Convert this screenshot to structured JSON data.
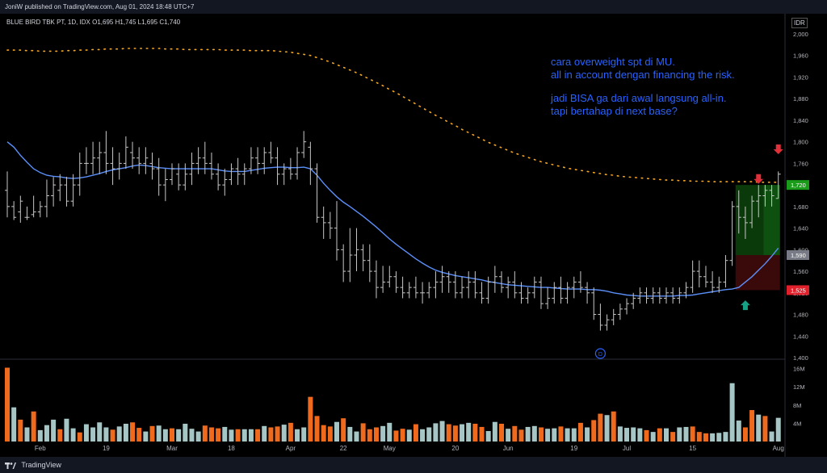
{
  "header": {
    "text": "JoniW published on TradingView.com, Aug 01, 2024 18:48 UTC+7"
  },
  "footer": {
    "brand": "TradingView"
  },
  "legend": {
    "symbol": "BLUE BIRD TBK PT, 1D, IDX",
    "o": "O1,695",
    "h": "H1,745",
    "l": "L1,695",
    "c": "C1,740"
  },
  "currency": "IDR",
  "annotation": {
    "line1": "cara overweight spt di MU.",
    "line2": "all in account dengan financing the risk.",
    "line3": "jadi BISA ga dari awal langsung all-in.",
    "line4": "tapi bertahap di next base?"
  },
  "colors": {
    "background": "#000000",
    "bar": "#c8c8c8",
    "ma_fast": "#5b8ff9",
    "ma_slow": "#f5a623",
    "vol_up": "#a6c6c6",
    "vol_down": "#f06a1e",
    "target_zone": "#0a3a0a",
    "stop_zone": "#3a0a0a",
    "tag_green": "#1a9c1a",
    "tag_red": "#e0202a",
    "tag_gray": "#787b86",
    "arrow_red": "#e0303a",
    "arrow_green": "#16a085",
    "annotation_text": "#2962ff"
  },
  "chart_data": {
    "type": "ohlc",
    "title": "BLUE BIRD TBK PT, 1D, IDX",
    "y_axis": {
      "ticks": [
        "2,000",
        "1,960",
        "1,920",
        "1,880",
        "1,840",
        "1,800",
        "1,760",
        "1,720",
        "1,680",
        "1,640",
        "1,600",
        "1,560",
        "1,520",
        "1,480",
        "1,440",
        "1,400"
      ],
      "min": 1400,
      "max": 2000
    },
    "price_tags": [
      {
        "label": "1,720",
        "value": 1720,
        "color": "green"
      },
      {
        "label": "1,590",
        "value": 1590,
        "color": "gray"
      },
      {
        "label": "1,525",
        "value": 1525,
        "color": "red"
      }
    ],
    "volume_axis": {
      "ticks": [
        "16M",
        "12M",
        "8M",
        "4M"
      ],
      "max": 17
    },
    "x_axis": {
      "labels": [
        {
          "label": "Feb",
          "bar": 5
        },
        {
          "label": "19",
          "bar": 15
        },
        {
          "label": "Mar",
          "bar": 25
        },
        {
          "label": "18",
          "bar": 34
        },
        {
          "label": "Apr",
          "bar": 43
        },
        {
          "label": "22",
          "bar": 51
        },
        {
          "label": "May",
          "bar": 58
        },
        {
          "label": "20",
          "bar": 68
        },
        {
          "label": "Jun",
          "bar": 76
        },
        {
          "label": "19",
          "bar": 86
        },
        {
          "label": "Jul",
          "bar": 94
        },
        {
          "label": "15",
          "bar": 104
        },
        {
          "label": "Aug",
          "bar": 117
        }
      ]
    },
    "bars_count": 118,
    "ohlc": [
      [
        1710,
        1745,
        1660,
        1680
      ],
      [
        1680,
        1690,
        1655,
        1660
      ],
      [
        1670,
        1700,
        1650,
        1690
      ],
      [
        1660,
        1680,
        1655,
        1660
      ],
      [
        1665,
        1700,
        1660,
        1670
      ],
      [
        1670,
        1690,
        1660,
        1680
      ],
      [
        1680,
        1730,
        1660,
        1700
      ],
      [
        1700,
        1735,
        1680,
        1720
      ],
      [
        1710,
        1740,
        1690,
        1720
      ],
      [
        1720,
        1735,
        1680,
        1690
      ],
      [
        1690,
        1740,
        1680,
        1720
      ],
      [
        1720,
        1780,
        1700,
        1760
      ],
      [
        1760,
        1790,
        1740,
        1760
      ],
      [
        1760,
        1800,
        1740,
        1770
      ],
      [
        1770,
        1800,
        1740,
        1780
      ],
      [
        1780,
        1820,
        1740,
        1760
      ],
      [
        1760,
        1790,
        1720,
        1750
      ],
      [
        1750,
        1780,
        1730,
        1760
      ],
      [
        1760,
        1810,
        1750,
        1790
      ],
      [
        1780,
        1800,
        1750,
        1770
      ],
      [
        1770,
        1790,
        1740,
        1760
      ],
      [
        1760,
        1790,
        1740,
        1770
      ],
      [
        1760,
        1780,
        1730,
        1750
      ],
      [
        1750,
        1770,
        1700,
        1720
      ],
      [
        1720,
        1750,
        1690,
        1730
      ],
      [
        1730,
        1760,
        1720,
        1750
      ],
      [
        1740,
        1760,
        1710,
        1720
      ],
      [
        1720,
        1760,
        1710,
        1740
      ],
      [
        1740,
        1780,
        1720,
        1760
      ],
      [
        1760,
        1790,
        1740,
        1770
      ],
      [
        1770,
        1800,
        1740,
        1760
      ],
      [
        1760,
        1780,
        1730,
        1740
      ],
      [
        1740,
        1760,
        1710,
        1720
      ],
      [
        1720,
        1750,
        1700,
        1730
      ],
      [
        1730,
        1760,
        1720,
        1750
      ],
      [
        1750,
        1770,
        1720,
        1740
      ],
      [
        1740,
        1760,
        1720,
        1750
      ],
      [
        1750,
        1790,
        1740,
        1770
      ],
      [
        1770,
        1790,
        1740,
        1760
      ],
      [
        1760,
        1790,
        1740,
        1780
      ],
      [
        1780,
        1800,
        1760,
        1770
      ],
      [
        1770,
        1790,
        1720,
        1740
      ],
      [
        1740,
        1760,
        1720,
        1750
      ],
      [
        1750,
        1770,
        1730,
        1740
      ],
      [
        1740,
        1790,
        1730,
        1780
      ],
      [
        1780,
        1820,
        1770,
        1800
      ],
      [
        1790,
        1800,
        1720,
        1750
      ],
      [
        1750,
        1760,
        1650,
        1660
      ],
      [
        1660,
        1680,
        1620,
        1650
      ],
      [
        1650,
        1670,
        1620,
        1640
      ],
      [
        1640,
        1690,
        1580,
        1600
      ],
      [
        1600,
        1610,
        1540,
        1560
      ],
      [
        1560,
        1640,
        1540,
        1590
      ],
      [
        1590,
        1640,
        1560,
        1600
      ],
      [
        1600,
        1610,
        1560,
        1580
      ],
      [
        1580,
        1610,
        1540,
        1560
      ],
      [
        1560,
        1580,
        1510,
        1530
      ],
      [
        1530,
        1570,
        1520,
        1540
      ],
      [
        1540,
        1570,
        1530,
        1550
      ],
      [
        1550,
        1560,
        1520,
        1530
      ],
      [
        1530,
        1550,
        1510,
        1520
      ],
      [
        1520,
        1540,
        1510,
        1530
      ],
      [
        1530,
        1550,
        1510,
        1520
      ],
      [
        1520,
        1540,
        1500,
        1520
      ],
      [
        1520,
        1540,
        1510,
        1530
      ],
      [
        1530,
        1560,
        1510,
        1540
      ],
      [
        1540,
        1570,
        1520,
        1550
      ],
      [
        1550,
        1560,
        1520,
        1540
      ],
      [
        1540,
        1560,
        1510,
        1520
      ],
      [
        1520,
        1550,
        1510,
        1530
      ],
      [
        1530,
        1560,
        1510,
        1540
      ],
      [
        1540,
        1560,
        1510,
        1520
      ],
      [
        1520,
        1540,
        1500,
        1510
      ],
      [
        1510,
        1550,
        1500,
        1540
      ],
      [
        1540,
        1570,
        1520,
        1550
      ],
      [
        1550,
        1560,
        1520,
        1530
      ],
      [
        1530,
        1550,
        1510,
        1540
      ],
      [
        1540,
        1560,
        1510,
        1520
      ],
      [
        1520,
        1540,
        1500,
        1510
      ],
      [
        1510,
        1530,
        1500,
        1520
      ],
      [
        1520,
        1550,
        1510,
        1540
      ],
      [
        1540,
        1550,
        1490,
        1500
      ],
      [
        1500,
        1530,
        1490,
        1510
      ],
      [
        1510,
        1540,
        1500,
        1530
      ],
      [
        1530,
        1550,
        1500,
        1510
      ],
      [
        1510,
        1540,
        1500,
        1530
      ],
      [
        1530,
        1550,
        1510,
        1540
      ],
      [
        1540,
        1560,
        1520,
        1530
      ],
      [
        1530,
        1540,
        1500,
        1520
      ],
      [
        1520,
        1530,
        1470,
        1480
      ],
      [
        1480,
        1500,
        1450,
        1460
      ],
      [
        1460,
        1480,
        1450,
        1470
      ],
      [
        1470,
        1490,
        1460,
        1480
      ],
      [
        1480,
        1500,
        1470,
        1490
      ],
      [
        1490,
        1510,
        1480,
        1500
      ],
      [
        1500,
        1520,
        1490,
        1510
      ],
      [
        1510,
        1530,
        1500,
        1520
      ],
      [
        1520,
        1530,
        1500,
        1510
      ],
      [
        1510,
        1530,
        1500,
        1520
      ],
      [
        1520,
        1530,
        1500,
        1510
      ],
      [
        1510,
        1530,
        1500,
        1520
      ],
      [
        1520,
        1530,
        1500,
        1510
      ],
      [
        1510,
        1530,
        1500,
        1520
      ],
      [
        1520,
        1540,
        1510,
        1530
      ],
      [
        1530,
        1580,
        1520,
        1560
      ],
      [
        1560,
        1580,
        1530,
        1550
      ],
      [
        1550,
        1570,
        1530,
        1540
      ],
      [
        1540,
        1560,
        1520,
        1530
      ],
      [
        1530,
        1550,
        1520,
        1540
      ],
      [
        1540,
        1590,
        1530,
        1580
      ],
      [
        1580,
        1690,
        1570,
        1680
      ],
      [
        1680,
        1710,
        1630,
        1660
      ],
      [
        1660,
        1680,
        1620,
        1650
      ],
      [
        1650,
        1700,
        1640,
        1690
      ],
      [
        1690,
        1720,
        1660,
        1700
      ],
      [
        1700,
        1720,
        1680,
        1710
      ],
      [
        1710,
        1720,
        1680,
        1700
      ],
      [
        1695,
        1745,
        1695,
        1740
      ]
    ],
    "ma_fast": [
      1800,
      1790,
      1775,
      1762,
      1750,
      1743,
      1738,
      1736,
      1735,
      1733,
      1732,
      1733,
      1735,
      1738,
      1741,
      1745,
      1748,
      1750,
      1752,
      1755,
      1757,
      1756,
      1754,
      1752,
      1751,
      1750,
      1750,
      1750,
      1750,
      1750,
      1750,
      1750,
      1748,
      1746,
      1745,
      1745,
      1745,
      1747,
      1749,
      1751,
      1752,
      1753,
      1753,
      1752,
      1752,
      1753,
      1750,
      1738,
      1723,
      1710,
      1698,
      1688,
      1680,
      1671,
      1662,
      1652,
      1642,
      1631,
      1620,
      1610,
      1601,
      1592,
      1583,
      1575,
      1568,
      1562,
      1558,
      1555,
      1552,
      1550,
      1548,
      1546,
      1544,
      1541,
      1539,
      1537,
      1535,
      1534,
      1533,
      1532,
      1531,
      1530,
      1530,
      1529,
      1528,
      1527,
      1527,
      1527,
      1526,
      1526,
      1525,
      1523,
      1520,
      1518,
      1516,
      1515,
      1514,
      1514,
      1514,
      1514,
      1514,
      1514,
      1515,
      1515,
      1516,
      1518,
      1520,
      1522,
      1524,
      1526,
      1527,
      1530,
      1540,
      1550,
      1562,
      1574,
      1588,
      1603
    ],
    "ma_slow": [
      1970,
      1970,
      1970,
      1969,
      1969,
      1968,
      1968,
      1968,
      1968,
      1969,
      1969,
      1970,
      1970,
      1971,
      1971,
      1972,
      1972,
      1972,
      1973,
      1973,
      1973,
      1973,
      1973,
      1973,
      1972,
      1972,
      1972,
      1971,
      1971,
      1971,
      1971,
      1971,
      1971,
      1970,
      1970,
      1970,
      1970,
      1969,
      1969,
      1969,
      1969,
      1968,
      1967,
      1966,
      1964,
      1962,
      1960,
      1956,
      1952,
      1948,
      1943,
      1938,
      1933,
      1928,
      1922,
      1916,
      1910,
      1904,
      1897,
      1891,
      1884,
      1877,
      1870,
      1863,
      1856,
      1849,
      1843,
      1836,
      1830,
      1823,
      1817,
      1811,
      1805,
      1799,
      1794,
      1789,
      1784,
      1779,
      1775,
      1771,
      1767,
      1763,
      1760,
      1757,
      1754,
      1751,
      1749,
      1747,
      1745,
      1743,
      1741,
      1739,
      1738,
      1736,
      1735,
      1734,
      1733,
      1732,
      1731,
      1730,
      1729,
      1729,
      1728,
      1728,
      1727,
      1727,
      1727,
      1726,
      1726,
      1726,
      1726,
      1726,
      1726,
      1726,
      1725,
      1725,
      1725,
      1725
    ],
    "volume": [
      16.2,
      7.5,
      4.8,
      3.1,
      6.6,
      2.5,
      3.6,
      4.8,
      2.7,
      5.0,
      2.9,
      2.0,
      3.8,
      3.1,
      4.2,
      3.1,
      2.6,
      3.3,
      3.9,
      4.2,
      3.0,
      2.2,
      3.4,
      3.5,
      2.7,
      2.9,
      2.7,
      3.9,
      2.8,
      2.2,
      3.5,
      3.1,
      2.9,
      3.2,
      2.6,
      2.7,
      2.7,
      2.7,
      2.7,
      3.4,
      3.1,
      3.3,
      3.7,
      4.1,
      2.7,
      3.1,
      9.8,
      5.6,
      3.6,
      3.3,
      4.3,
      5.1,
      3.2,
      2.2,
      4.0,
      2.7,
      3.1,
      3.4,
      4.1,
      2.4,
      2.8,
      2.6,
      3.8,
      2.7,
      3.1,
      4.0,
      4.5,
      3.8,
      3.5,
      3.8,
      4.1,
      3.9,
      3.2,
      2.3,
      4.3,
      3.9,
      2.8,
      3.4,
      2.6,
      3.2,
      3.4,
      3.1,
      2.8,
      2.9,
      3.3,
      2.9,
      2.9,
      4.1,
      3.1,
      4.7,
      6.1,
      5.8,
      6.6,
      3.3,
      3.0,
      3.1,
      2.9,
      2.5,
      2.1,
      2.9,
      2.9,
      2.1,
      3.1,
      3.2,
      3.3,
      2.1,
      1.8,
      1.8,
      1.9,
      2.1,
      12.8,
      4.6,
      3.1,
      6.9,
      5.9,
      5.6,
      2.2,
      5.2
    ],
    "volume_up": [
      0,
      1,
      0,
      1,
      0,
      1,
      1,
      1,
      0,
      1,
      1,
      0,
      1,
      1,
      1,
      1,
      0,
      1,
      1,
      0,
      0,
      1,
      0,
      1,
      1,
      0,
      1,
      1,
      1,
      1,
      0,
      0,
      0,
      1,
      1,
      0,
      1,
      1,
      0,
      1,
      0,
      0,
      1,
      0,
      1,
      1,
      0,
      0,
      0,
      0,
      1,
      0,
      1,
      1,
      0,
      0,
      0,
      1,
      1,
      0,
      0,
      1,
      0,
      1,
      1,
      1,
      1,
      0,
      0,
      1,
      1,
      0,
      0,
      1,
      1,
      0,
      1,
      0,
      0,
      1,
      1,
      0,
      1,
      1,
      0,
      1,
      1,
      0,
      1,
      0,
      0,
      1,
      0,
      1,
      1,
      1,
      1,
      0,
      1,
      0,
      1,
      0,
      1,
      1,
      0,
      0,
      0,
      1,
      1,
      1,
      1,
      1,
      0,
      0,
      1,
      0,
      1,
      1
    ],
    "position_box": {
      "start_bar": 111,
      "end_bar": 117,
      "entry": 1590,
      "target": 1720,
      "stop": 1525
    },
    "markers": [
      {
        "type": "arrow-down",
        "bar": 117,
        "value": 1783,
        "color": "red"
      },
      {
        "type": "arrow-down",
        "bar": 114,
        "value": 1728,
        "color": "red"
      },
      {
        "type": "arrow-up",
        "bar": 112,
        "value": 1500,
        "color": "green"
      },
      {
        "type": "dividend",
        "bar": 90,
        "label": "D"
      }
    ]
  }
}
